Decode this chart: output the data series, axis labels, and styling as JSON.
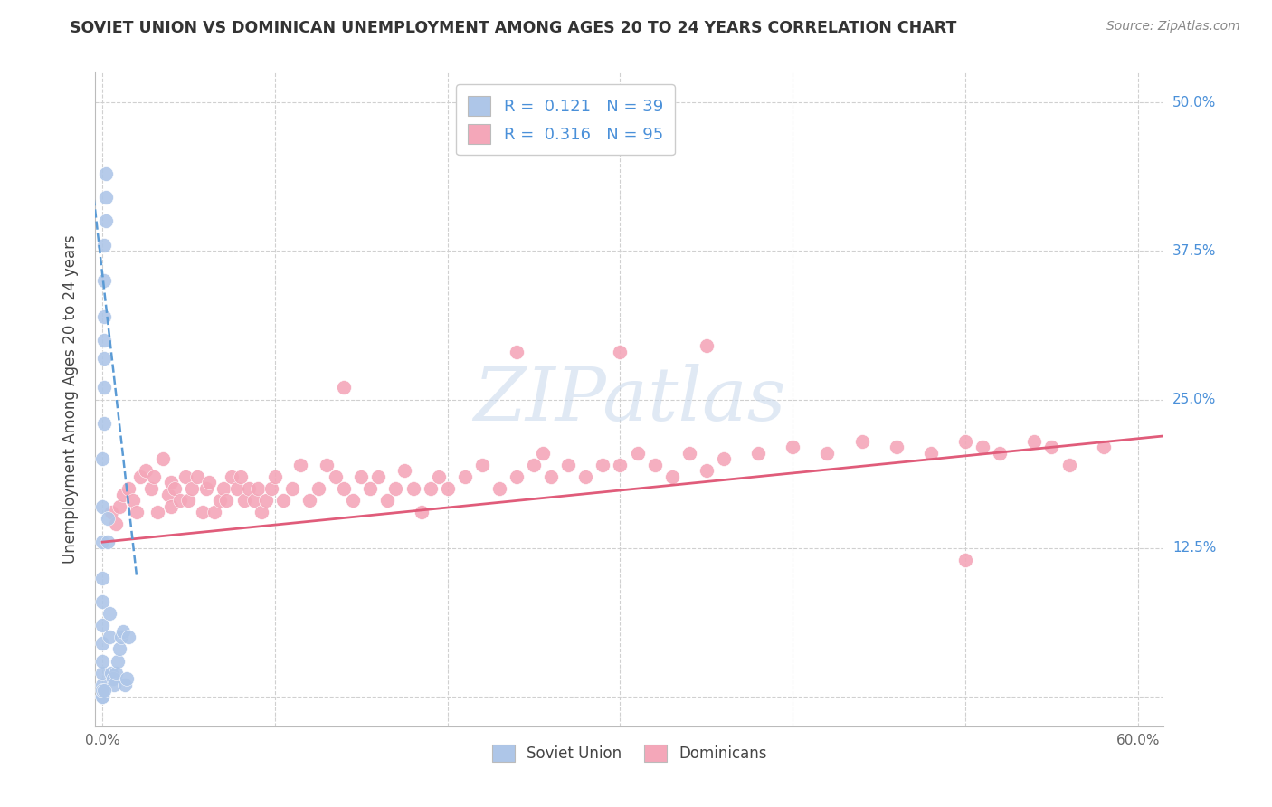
{
  "title": "SOVIET UNION VS DOMINICAN UNEMPLOYMENT AMONG AGES 20 TO 24 YEARS CORRELATION CHART",
  "source": "Source: ZipAtlas.com",
  "ylabel": "Unemployment Among Ages 20 to 24 years",
  "xlim": [
    -0.004,
    0.615
  ],
  "ylim": [
    -0.025,
    0.525
  ],
  "xtick_positions": [
    0.0,
    0.1,
    0.2,
    0.3,
    0.4,
    0.5,
    0.6
  ],
  "xtick_labels": [
    "0.0%",
    "",
    "",
    "",
    "",
    "",
    "60.0%"
  ],
  "ytick_positions": [
    0.0,
    0.125,
    0.25,
    0.375,
    0.5
  ],
  "ytick_right_labels": [
    "",
    "12.5%",
    "25.0%",
    "37.5%",
    "50.0%"
  ],
  "soviet_R": "0.121",
  "soviet_N": "39",
  "dominican_R": "0.316",
  "dominican_N": "95",
  "soviet_scatter_color": "#aec6e8",
  "soviet_line_color": "#5b9bd5",
  "dominican_scatter_color": "#f4a7b9",
  "dominican_line_color": "#e05c7a",
  "label_soviet": "Soviet Union",
  "label_dominican": "Dominicans",
  "watermark_text": "ZIPatlas",
  "label_color": "#4a90d9",
  "grid_color": "#d0d0d0",
  "soviet_x": [
    0.0,
    0.0,
    0.0,
    0.0,
    0.0,
    0.0,
    0.0,
    0.0,
    0.0,
    0.0,
    0.0,
    0.0,
    0.001,
    0.001,
    0.001,
    0.001,
    0.001,
    0.001,
    0.001,
    0.002,
    0.002,
    0.002,
    0.003,
    0.003,
    0.004,
    0.004,
    0.005,
    0.006,
    0.007,
    0.008,
    0.009,
    0.01,
    0.011,
    0.012,
    0.013,
    0.014,
    0.015,
    0.0,
    0.001
  ],
  "soviet_y": [
    0.0,
    0.0,
    0.01,
    0.02,
    0.03,
    0.045,
    0.06,
    0.08,
    0.1,
    0.13,
    0.16,
    0.2,
    0.23,
    0.26,
    0.285,
    0.3,
    0.32,
    0.35,
    0.38,
    0.4,
    0.42,
    0.44,
    0.13,
    0.15,
    0.05,
    0.07,
    0.02,
    0.015,
    0.01,
    0.02,
    0.03,
    0.04,
    0.05,
    0.055,
    0.01,
    0.015,
    0.05,
    0.005,
    0.005
  ],
  "dominican_x": [
    0.005,
    0.008,
    0.01,
    0.012,
    0.015,
    0.018,
    0.02,
    0.022,
    0.025,
    0.028,
    0.03,
    0.032,
    0.035,
    0.038,
    0.04,
    0.04,
    0.042,
    0.045,
    0.048,
    0.05,
    0.052,
    0.055,
    0.058,
    0.06,
    0.062,
    0.065,
    0.068,
    0.07,
    0.072,
    0.075,
    0.078,
    0.08,
    0.082,
    0.085,
    0.088,
    0.09,
    0.092,
    0.095,
    0.098,
    0.1,
    0.105,
    0.11,
    0.115,
    0.12,
    0.125,
    0.13,
    0.135,
    0.14,
    0.145,
    0.15,
    0.155,
    0.16,
    0.165,
    0.17,
    0.175,
    0.18,
    0.185,
    0.19,
    0.195,
    0.2,
    0.21,
    0.22,
    0.23,
    0.24,
    0.25,
    0.255,
    0.26,
    0.27,
    0.28,
    0.29,
    0.3,
    0.31,
    0.32,
    0.33,
    0.34,
    0.35,
    0.36,
    0.38,
    0.4,
    0.42,
    0.44,
    0.46,
    0.48,
    0.5,
    0.51,
    0.52,
    0.54,
    0.55,
    0.56,
    0.58,
    0.24,
    0.3,
    0.35,
    0.14,
    0.5
  ],
  "dominican_y": [
    0.155,
    0.145,
    0.16,
    0.17,
    0.175,
    0.165,
    0.155,
    0.185,
    0.19,
    0.175,
    0.185,
    0.155,
    0.2,
    0.17,
    0.18,
    0.16,
    0.175,
    0.165,
    0.185,
    0.165,
    0.175,
    0.185,
    0.155,
    0.175,
    0.18,
    0.155,
    0.165,
    0.175,
    0.165,
    0.185,
    0.175,
    0.185,
    0.165,
    0.175,
    0.165,
    0.175,
    0.155,
    0.165,
    0.175,
    0.185,
    0.165,
    0.175,
    0.195,
    0.165,
    0.175,
    0.195,
    0.185,
    0.175,
    0.165,
    0.185,
    0.175,
    0.185,
    0.165,
    0.175,
    0.19,
    0.175,
    0.155,
    0.175,
    0.185,
    0.175,
    0.185,
    0.195,
    0.175,
    0.185,
    0.195,
    0.205,
    0.185,
    0.195,
    0.185,
    0.195,
    0.195,
    0.205,
    0.195,
    0.185,
    0.205,
    0.19,
    0.2,
    0.205,
    0.21,
    0.205,
    0.215,
    0.21,
    0.205,
    0.215,
    0.21,
    0.205,
    0.215,
    0.21,
    0.195,
    0.21,
    0.29,
    0.29,
    0.295,
    0.26,
    0.115
  ],
  "dominican_trend_x0": 0.0,
  "dominican_trend_x1": 0.62,
  "dominican_trend_y0": 0.13,
  "dominican_trend_y1": 0.22,
  "soviet_trend_x0": -0.005,
  "soviet_trend_x1": 0.02,
  "soviet_trend_y0": 0.42,
  "soviet_trend_y1": 0.1
}
